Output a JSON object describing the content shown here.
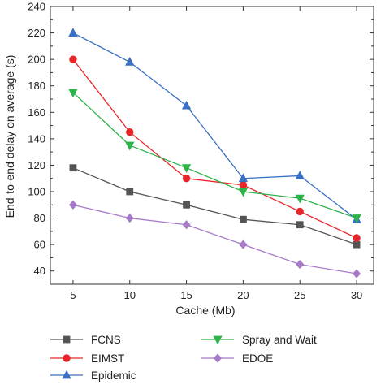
{
  "chart_data": {
    "type": "line",
    "title": "",
    "xlabel": "Cache (Mb)",
    "ylabel": "End-to-end delay on average (s)",
    "x": [
      5,
      10,
      15,
      20,
      25,
      30
    ],
    "xlim": [
      3,
      31.5
    ],
    "ylim": [
      30,
      240
    ],
    "yticks": [
      40,
      60,
      80,
      100,
      120,
      140,
      160,
      180,
      200,
      220,
      240
    ],
    "grid": false,
    "legend_position": "bottom",
    "series": [
      {
        "name": "FCNS",
        "color": "#555555",
        "marker": "square",
        "values": [
          118,
          100,
          90,
          79,
          75,
          60
        ]
      },
      {
        "name": "EIMST",
        "color": "#e8262a",
        "marker": "circle",
        "values": [
          200,
          145,
          110,
          105,
          85,
          65
        ]
      },
      {
        "name": "Epidemic",
        "color": "#3a6fc4",
        "marker": "triangle-up",
        "values": [
          220,
          198,
          165,
          110,
          112,
          79
        ]
      },
      {
        "name": "Spray and Wait",
        "color": "#2db34a",
        "marker": "triangle-down",
        "values": [
          175,
          135,
          118,
          100,
          95,
          80
        ]
      },
      {
        "name": "EDOE",
        "color": "#a77bca",
        "marker": "diamond",
        "values": [
          90,
          80,
          75,
          60,
          45,
          38
        ]
      }
    ]
  }
}
